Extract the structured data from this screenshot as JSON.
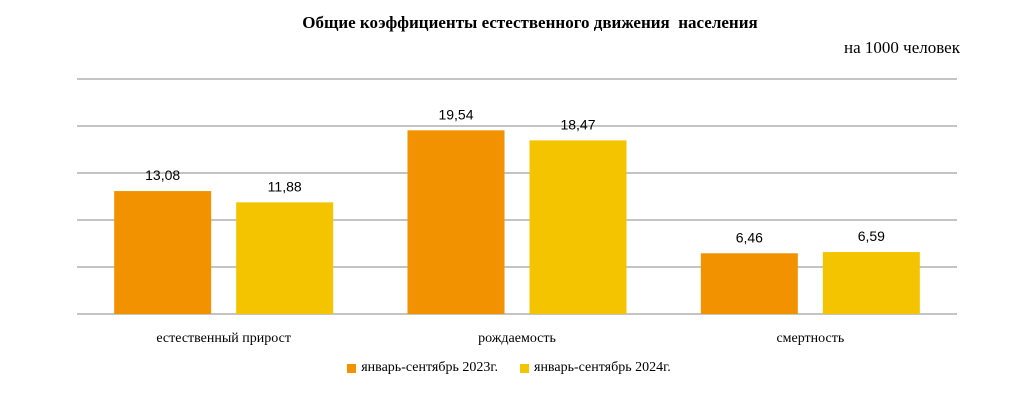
{
  "chart_data": {
    "type": "bar",
    "title": "Общие коэффициенты естественного движения  населения",
    "subtitle": "на 1000 человек",
    "categories": [
      "естественный прирост",
      "рождаемость",
      "смертность"
    ],
    "series": [
      {
        "name": "январь-сентябрь 2023г.",
        "color": "#F39200",
        "values": [
          13.08,
          19.54,
          6.46
        ],
        "labels": [
          "13,08",
          "19,54",
          "6,46"
        ]
      },
      {
        "name": "январь-сентябрь 2024г.",
        "color": "#F5C400",
        "values": [
          11.88,
          18.47,
          6.59
        ],
        "labels": [
          "11,88",
          "18,47",
          "6,59"
        ]
      }
    ],
    "ylim": [
      0,
      25
    ],
    "grid": true,
    "legend_position": "bottom"
  }
}
